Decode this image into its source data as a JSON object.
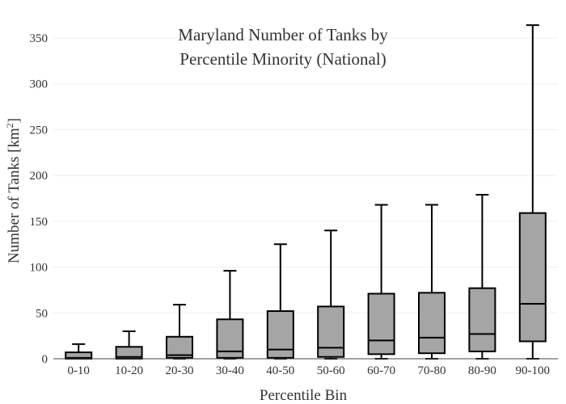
{
  "chart_data": {
    "type": "box",
    "title_lines": [
      "Maryland Number of Tanks by",
      "Percentile Minority (National)"
    ],
    "xlabel": "Percentile Bin",
    "ylabel": "Number of Tanks  [km",
    "ylabel_sup": "2",
    "ylabel_close": "]",
    "ylim": [
      0,
      365
    ],
    "yticks": [
      0,
      50,
      100,
      150,
      200,
      250,
      300,
      350
    ],
    "ytick_labels": [
      "0",
      "50",
      "100",
      "150",
      "200",
      "250",
      "300",
      "350"
    ],
    "grid": true,
    "categories": [
      "0-10",
      "10-20",
      "20-30",
      "30-40",
      "40-50",
      "50-60",
      "60-70",
      "70-80",
      "80-90",
      "90-100"
    ],
    "boxes": [
      {
        "min": 0,
        "q1": 0,
        "median": 1,
        "q3": 7,
        "max": 16
      },
      {
        "min": 0,
        "q1": 0,
        "median": 2,
        "q3": 13,
        "max": 30
      },
      {
        "min": 0,
        "q1": 1,
        "median": 4,
        "q3": 24,
        "max": 59
      },
      {
        "min": 0,
        "q1": 1,
        "median": 8,
        "q3": 43,
        "max": 96
      },
      {
        "min": 0,
        "q1": 1,
        "median": 10,
        "q3": 52,
        "max": 125
      },
      {
        "min": 0,
        "q1": 2,
        "median": 12,
        "q3": 57,
        "max": 140
      },
      {
        "min": 0,
        "q1": 5,
        "median": 20,
        "q3": 71,
        "max": 168
      },
      {
        "min": 0,
        "q1": 6,
        "median": 23,
        "q3": 72,
        "max": 168
      },
      {
        "min": 0,
        "q1": 8,
        "median": 27,
        "q3": 77,
        "max": 179
      },
      {
        "min": 0,
        "q1": 19,
        "median": 60,
        "q3": 159,
        "max": 364
      }
    ],
    "colors": {
      "box_fill": "#a5a5a5",
      "line": "#000000",
      "grid": "#eeeeee"
    }
  }
}
